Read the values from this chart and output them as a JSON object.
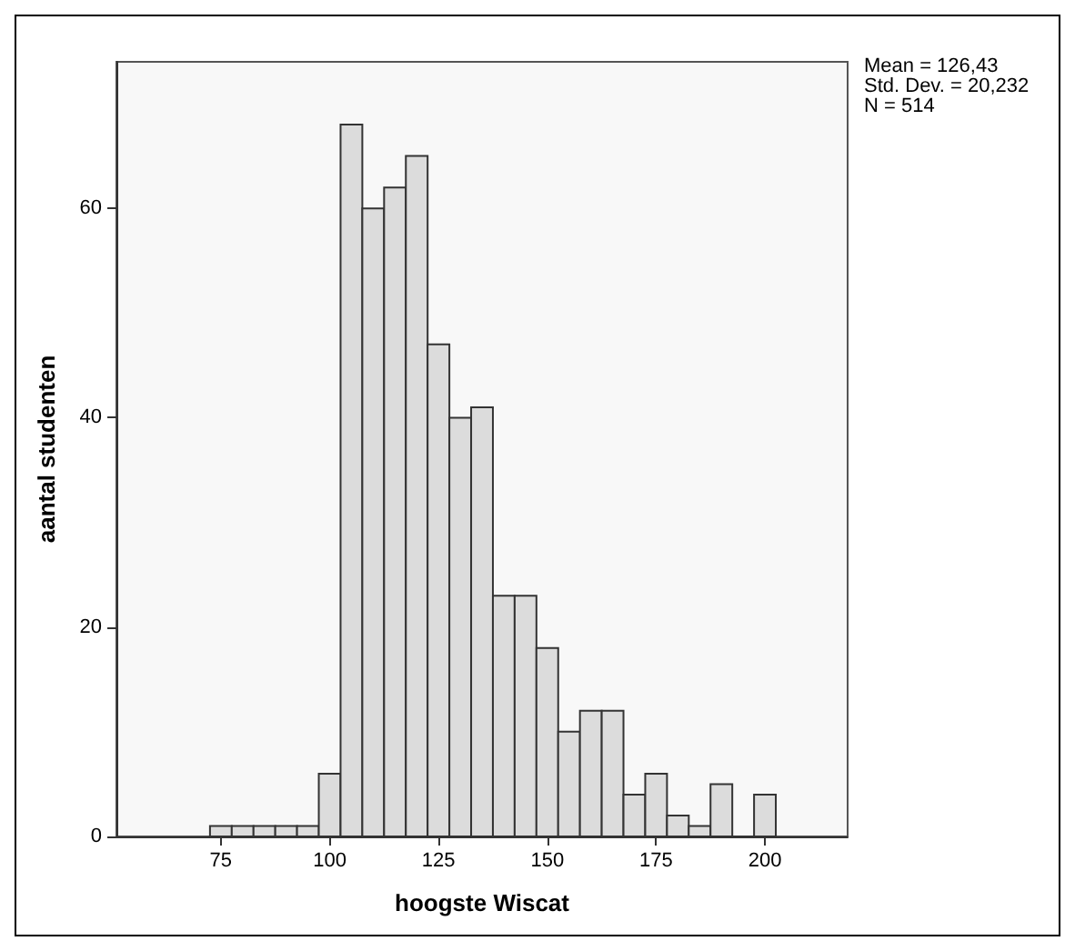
{
  "chart_data": {
    "type": "histogram",
    "xlabel": "hoogste Wiscat",
    "ylabel": "aantal studenten",
    "bins": [
      72.5,
      77.5,
      82.5,
      87.5,
      92.5,
      97.5,
      102.5,
      107.5,
      112.5,
      117.5,
      122.5,
      127.5,
      132.5,
      137.5,
      142.5,
      147.5,
      152.5,
      157.5,
      162.5,
      167.5,
      172.5,
      177.5,
      182.5,
      187.5,
      192.5,
      197.5,
      202.5
    ],
    "values": [
      1,
      1,
      1,
      1,
      1,
      6,
      68,
      60,
      62,
      65,
      47,
      40,
      41,
      23,
      23,
      18,
      10,
      12,
      12,
      4,
      6,
      2,
      1,
      5,
      0,
      4
    ],
    "color": "#dcdcdc",
    "xlim": [
      51,
      219
    ],
    "xticks": [
      75,
      100,
      125,
      150,
      175,
      200
    ],
    "ylim": [
      0,
      74
    ],
    "yticks": [
      0,
      20,
      40,
      60
    ],
    "grid": false,
    "annotations": [
      "Mean = 126,43",
      "Std. Dev. = 20,232",
      "N = 514"
    ]
  }
}
